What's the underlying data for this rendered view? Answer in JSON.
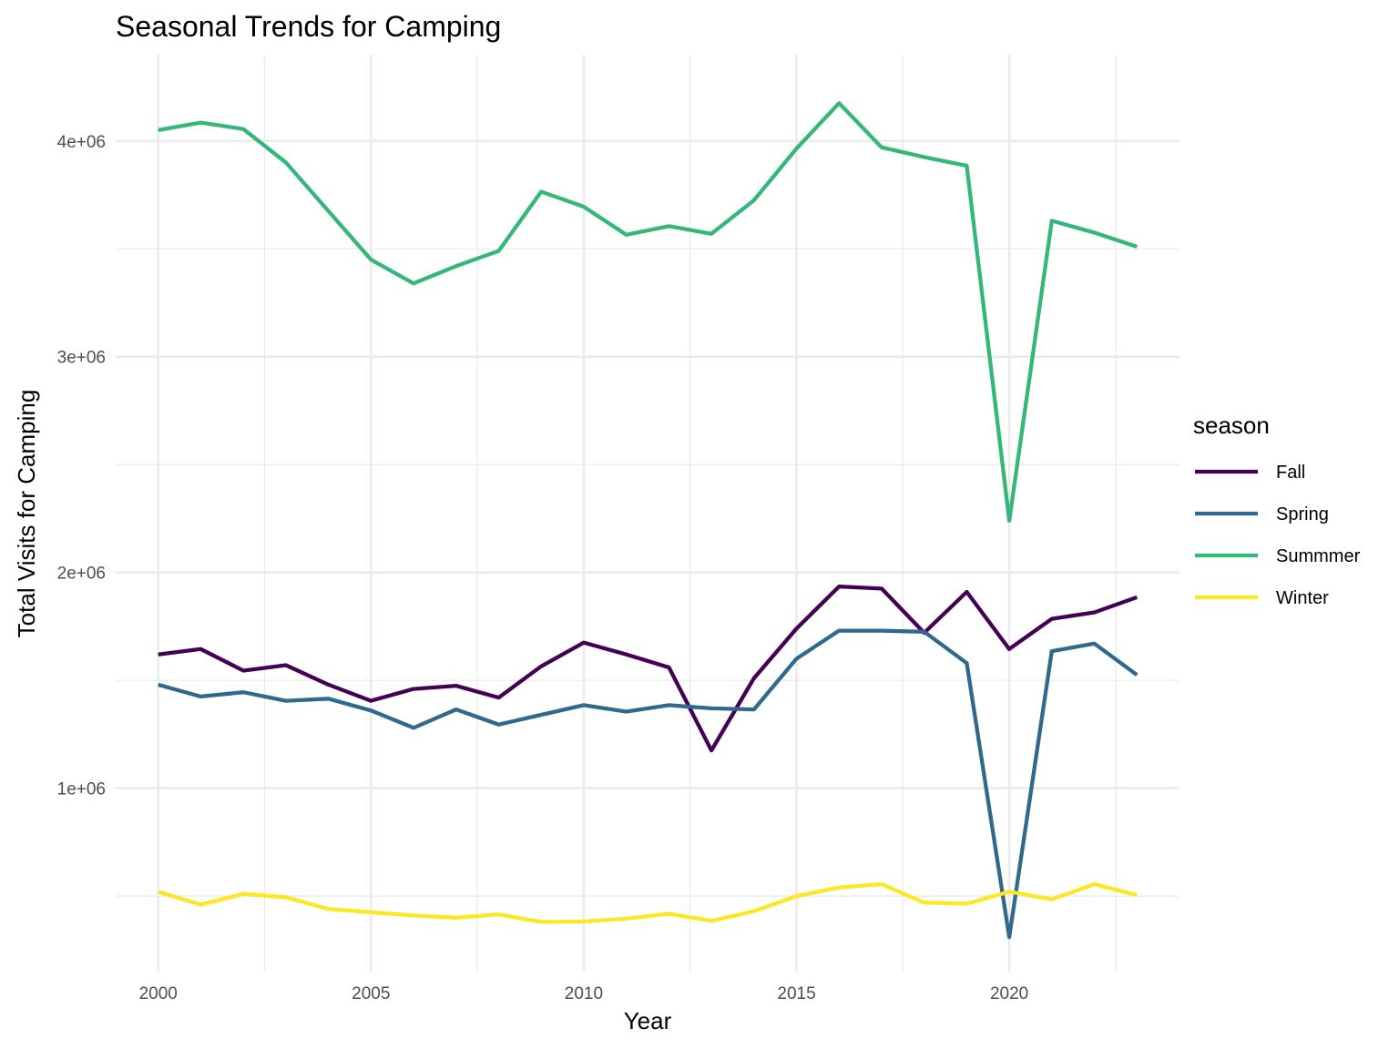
{
  "chart_data": {
    "type": "line",
    "title": "Seasonal Trends for Camping",
    "xlabel": "Year",
    "ylabel": "Total Visits for Camping",
    "xlim": [
      1999,
      2024
    ],
    "ylim": [
      150000,
      4400000
    ],
    "x_ticks": [
      2000,
      2005,
      2010,
      2015,
      2020
    ],
    "x_tick_labels": [
      "2000",
      "2005",
      "2010",
      "2015",
      "2020"
    ],
    "x_minor_ticks": [
      2002.5,
      2007.5,
      2012.5,
      2017.5,
      2022.5
    ],
    "y_ticks": [
      1000000,
      2000000,
      3000000,
      4000000
    ],
    "y_tick_labels": [
      "1e+06",
      "2e+06",
      "3e+06",
      "4e+06"
    ],
    "y_minor_ticks": [
      500000,
      1500000,
      2500000,
      3500000
    ],
    "grid": true,
    "legend_title": "season",
    "legend_position": "right",
    "x": [
      2000,
      2001,
      2002,
      2003,
      2004,
      2005,
      2006,
      2007,
      2008,
      2009,
      2010,
      2011,
      2012,
      2013,
      2014,
      2015,
      2016,
      2017,
      2018,
      2019,
      2020,
      2021,
      2022,
      2023
    ],
    "series": [
      {
        "name": "Fall",
        "color": "#440154",
        "values": [
          1620000,
          1645000,
          1545000,
          1570000,
          1480000,
          1405000,
          1460000,
          1475000,
          1420000,
          1565000,
          1675000,
          1620000,
          1560000,
          1175000,
          1510000,
          1740000,
          1935000,
          1925000,
          1720000,
          1910000,
          1645000,
          1785000,
          1815000,
          1885000
        ]
      },
      {
        "name": "Spring",
        "color": "#31688e",
        "values": [
          1480000,
          1425000,
          1445000,
          1405000,
          1415000,
          1360000,
          1280000,
          1365000,
          1295000,
          1340000,
          1385000,
          1355000,
          1385000,
          1370000,
          1365000,
          1600000,
          1730000,
          1730000,
          1725000,
          1580000,
          310000,
          1635000,
          1670000,
          1525000
        ]
      },
      {
        "name": "Summmer",
        "color": "#35b779",
        "values": [
          4050000,
          4085000,
          4055000,
          3900000,
          3675000,
          3450000,
          3340000,
          3420000,
          3490000,
          3765000,
          3695000,
          3565000,
          3605000,
          3570000,
          3725000,
          3965000,
          4175000,
          3970000,
          3925000,
          3885000,
          2240000,
          3630000,
          3575000,
          3510000
        ]
      },
      {
        "name": "Winter",
        "color": "#fde725",
        "values": [
          520000,
          460000,
          510000,
          495000,
          440000,
          425000,
          410000,
          400000,
          415000,
          380000,
          382000,
          395000,
          418000,
          385000,
          430000,
          500000,
          540000,
          555000,
          470000,
          465000,
          520000,
          485000,
          555000,
          505000
        ]
      }
    ]
  }
}
